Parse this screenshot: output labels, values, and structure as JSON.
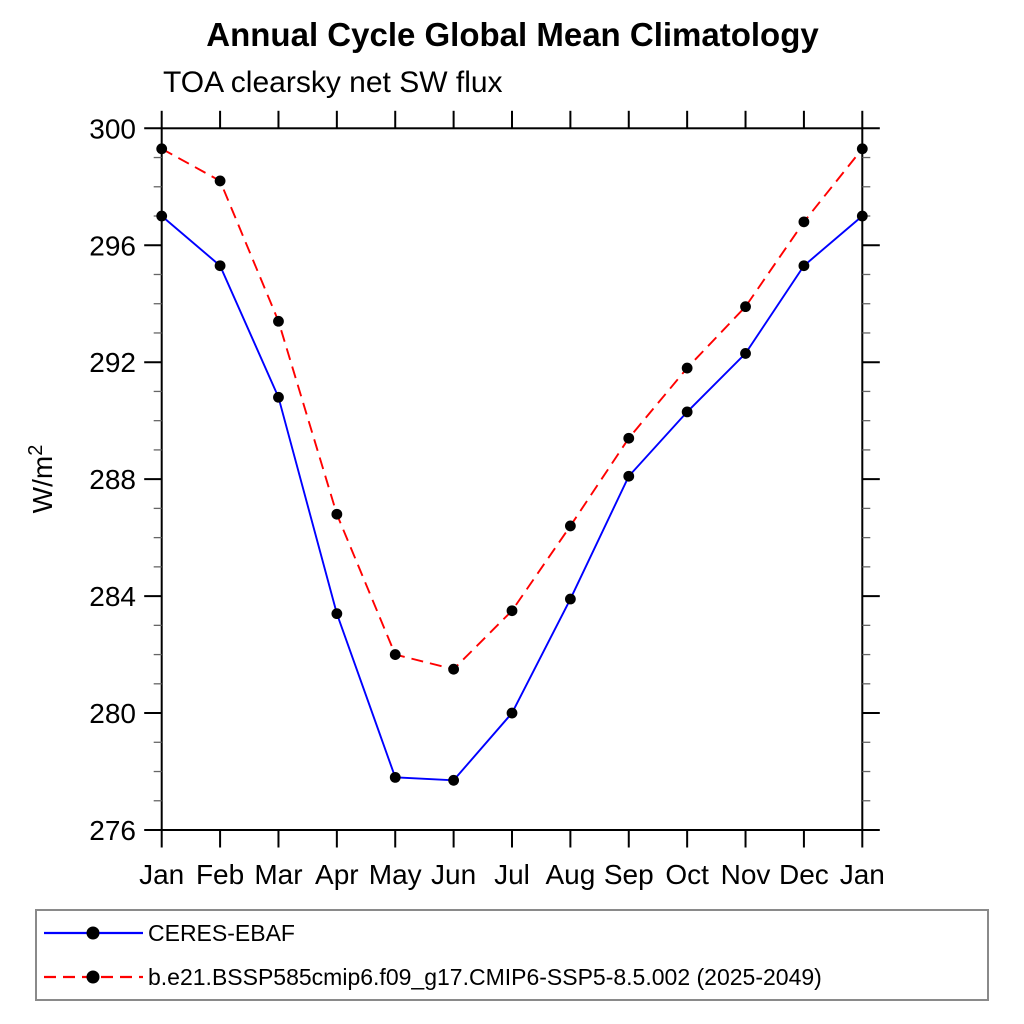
{
  "title": "Annual Cycle Global Mean Climatology",
  "subtitle": "TOA clearsky net SW flux",
  "chart_data": {
    "type": "line",
    "title": "Annual Cycle Global Mean Climatology",
    "subtitle": "TOA clearsky net SW flux",
    "ylabel_base": "W/m",
    "ylabel_exponent": "2",
    "x": [
      "Jan",
      "Feb",
      "Mar",
      "Apr",
      "May",
      "Jun",
      "Jul",
      "Aug",
      "Sep",
      "Oct",
      "Nov",
      "Dec",
      "Jan"
    ],
    "ylim": [
      276,
      300
    ],
    "ytick_major_step": 4,
    "ytick_minor_step": 1,
    "ytick_major_labels": [
      "276",
      "280",
      "284",
      "288",
      "292",
      "296",
      "300"
    ],
    "grid": false,
    "legend_position": "bottom-left-box",
    "series": [
      {
        "name": "CERES-EBAF",
        "color": "#0000ff",
        "line_style": "solid",
        "marker": "circle",
        "marker_color": "#000000",
        "values": [
          297.0,
          295.3,
          290.8,
          283.4,
          277.8,
          277.7,
          280.0,
          283.9,
          288.1,
          290.3,
          292.3,
          295.3,
          297.0
        ]
      },
      {
        "name": "b.e21.BSSP585cmip6.f09_g17.CMIP6-SSP5-8.5.002 (2025-2049)",
        "color": "#ff0000",
        "line_style": "dashed",
        "marker": "circle",
        "marker_color": "#000000",
        "values": [
          299.3,
          298.2,
          293.4,
          286.8,
          282.0,
          281.5,
          283.5,
          286.4,
          289.4,
          291.8,
          293.9,
          296.8,
          299.3
        ]
      }
    ]
  }
}
